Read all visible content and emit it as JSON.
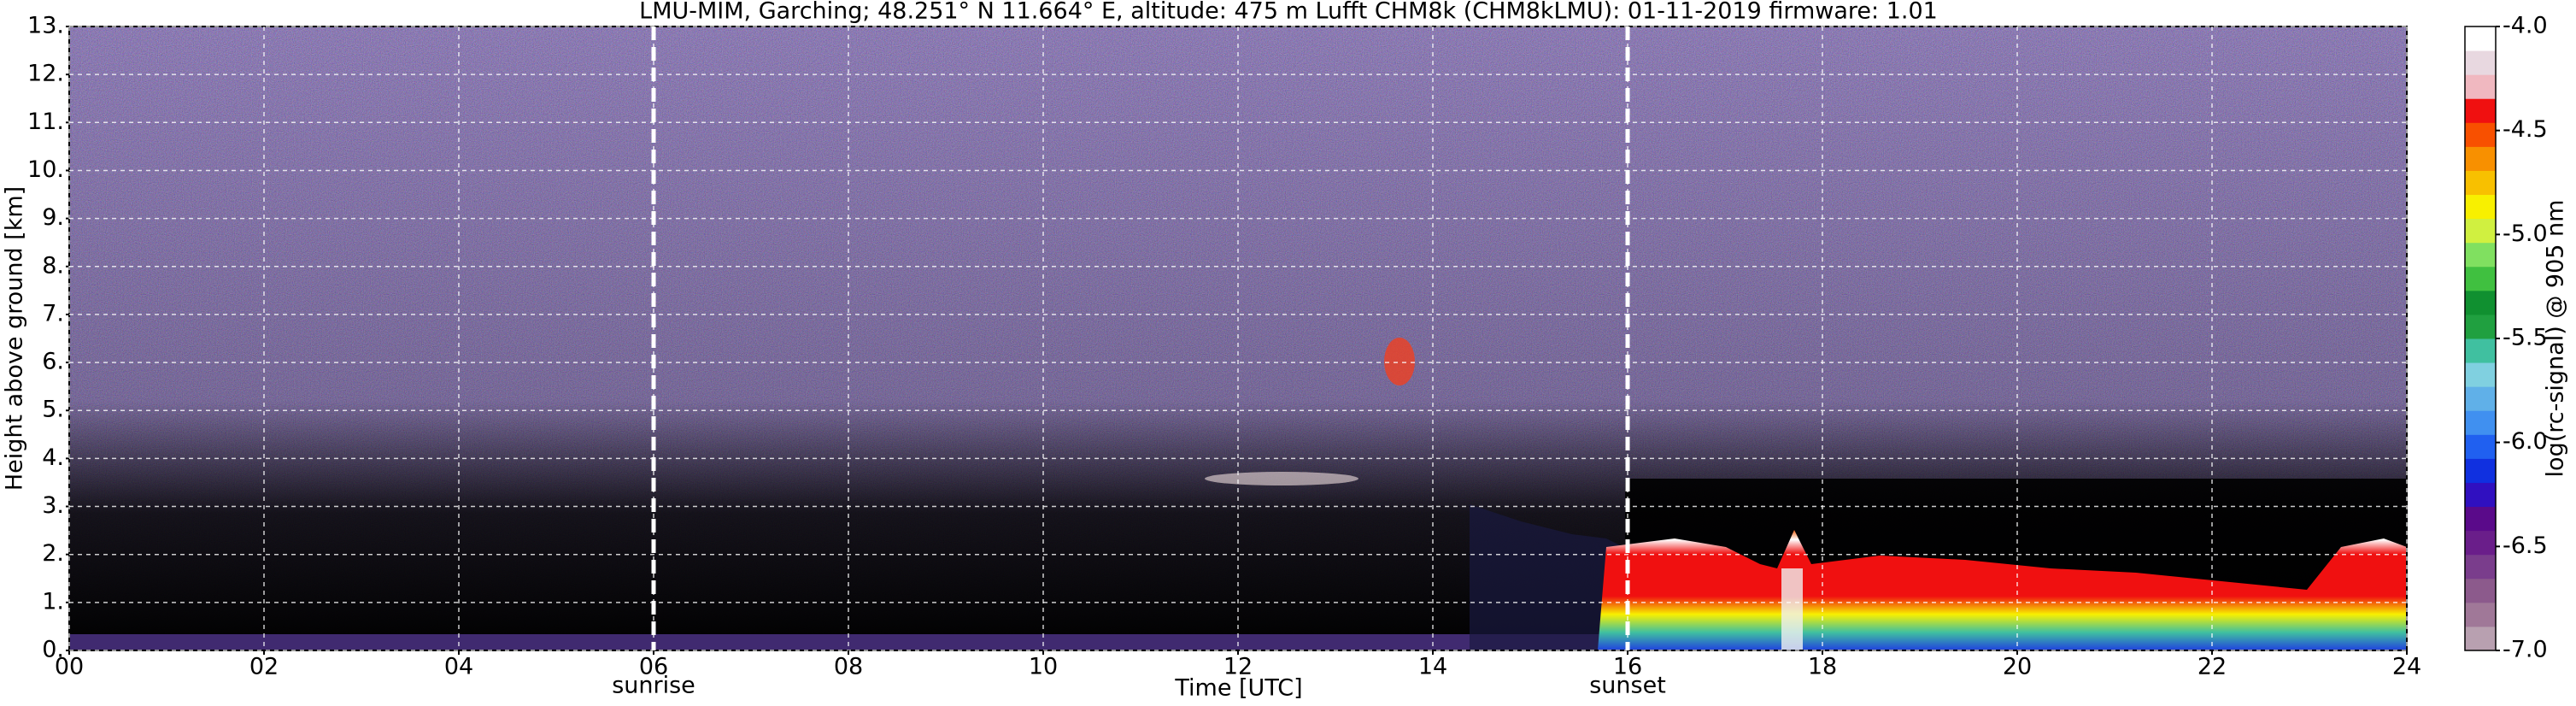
{
  "chart_data": {
    "type": "heatmap",
    "title": "LMU-MIM, Garching; 48.251° N 11.664° E, altitude: 475 m    Lufft CHM8k (CHM8kLMU): 01-11-2019    firmware: 1.01",
    "x_label": "Time [UTC]",
    "y_label": "Height above ground [km]",
    "xlim": [
      0,
      24
    ],
    "xticks": [
      {
        "value": 0,
        "label": "00"
      },
      {
        "value": 2,
        "label": "02"
      },
      {
        "value": 4,
        "label": "04"
      },
      {
        "value": 6,
        "label": "06"
      },
      {
        "value": 8,
        "label": "08"
      },
      10,
      12,
      14,
      16,
      18,
      20,
      22,
      24
    ],
    "ylim": [
      0,
      13
    ],
    "yticks": [
      {
        "value": 0,
        "label": "0."
      },
      {
        "value": 1,
        "label": "1."
      },
      {
        "value": 2,
        "label": "2."
      },
      {
        "value": 3,
        "label": "3."
      },
      {
        "value": 4,
        "label": "4."
      },
      {
        "value": 5,
        "label": "5."
      },
      {
        "value": 6,
        "label": "6."
      },
      {
        "value": 7,
        "label": "7."
      },
      {
        "value": 8,
        "label": "8."
      },
      {
        "value": 9,
        "label": "9."
      },
      {
        "value": 10,
        "label": "10."
      },
      {
        "value": 11,
        "label": "11."
      },
      {
        "value": 12,
        "label": "12."
      },
      {
        "value": 13,
        "label": "13."
      }
    ],
    "grid": true,
    "annotations": [
      {
        "text": "sunrise",
        "x": 6
      },
      {
        "text": "sunset",
        "x": 16
      }
    ],
    "colorbar": {
      "label": "log(rc-signal) @ 905 nm",
      "lim": [
        -7,
        -4
      ],
      "ticks": [
        {
          "value": -4,
          "label": "-4.0"
        },
        {
          "value": -4.5,
          "label": "-4.5"
        },
        {
          "value": -5,
          "label": "-5.0"
        },
        {
          "value": -5.5,
          "label": "-5.5"
        },
        {
          "value": -6,
          "label": "-6.0"
        },
        {
          "value": -6.5,
          "label": "-6.5"
        },
        {
          "value": -7,
          "label": "-7.0"
        }
      ],
      "colors": [
        "#b8a0b0",
        "#a07898",
        "#8c5a8c",
        "#7a3d8c",
        "#6a1e8a",
        "#5a0a8a",
        "#3010c0",
        "#1030e0",
        "#2060f0",
        "#4090f0",
        "#60b0e8",
        "#80d0e0",
        "#40c0a0",
        "#20a040",
        "#109030",
        "#40c040",
        "#80e060",
        "#d0f040",
        "#f8f000",
        "#f8c000",
        "#f89000",
        "#f85000",
        "#f01010",
        "#f0b8c0",
        "#e8d8e0",
        "#ffffff"
      ]
    }
  }
}
